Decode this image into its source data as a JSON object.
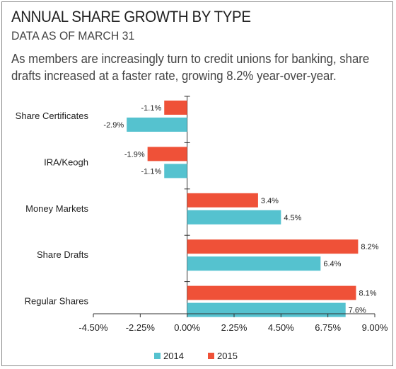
{
  "header": {
    "title": "ANNUAL SHARE GROWTH BY TYPE",
    "subtitle": "DATA AS OF MARCH 31",
    "description": "As members are increasingly turn to credit unions for banking, share drafts increased at a faster rate, growing 8.2% year-over-year."
  },
  "chart_data": {
    "type": "bar",
    "orientation": "horizontal",
    "categories": [
      "Share Certificates",
      "IRA/Keogh",
      "Money Markets",
      "Share Drafts",
      "Regular Shares"
    ],
    "series": [
      {
        "name": "2015",
        "color": "#ef5138",
        "values": [
          -1.1,
          -1.9,
          3.4,
          8.2,
          8.1
        ],
        "labels": [
          "-1.1%",
          "-1.9%",
          "3.4%",
          "8.2%",
          "8.1%"
        ]
      },
      {
        "name": "2014",
        "color": "#55c2cf",
        "values": [
          -2.9,
          -1.1,
          4.5,
          6.4,
          7.6
        ],
        "labels": [
          "-2.9%",
          "-1.1%",
          "4.5%",
          "6.4%",
          "7.6%"
        ]
      }
    ],
    "xlim": [
      -4.5,
      9.0
    ],
    "xticks": [
      -4.5,
      -2.25,
      0,
      2.25,
      4.5,
      6.75,
      9.0
    ],
    "xtick_labels": [
      "-4.50%",
      "-2.25%",
      "0.00%",
      "2.25%",
      "4.50%",
      "6.75%",
      "9.00%"
    ],
    "legend": [
      {
        "name": "2014",
        "color": "#55c2cf"
      },
      {
        "name": "2015",
        "color": "#ef5138"
      }
    ],
    "legend_position": "bottom",
    "grid": false
  }
}
